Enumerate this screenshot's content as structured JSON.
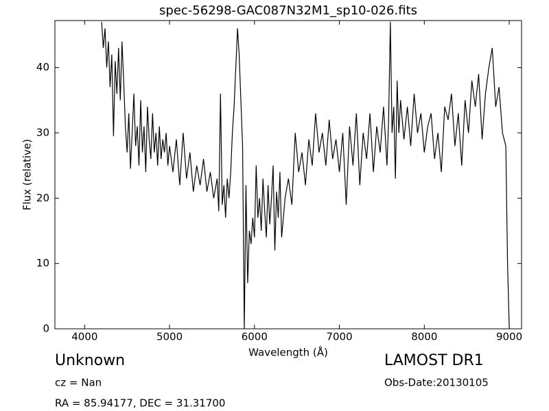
{
  "chart_data": {
    "type": "line",
    "title": "spec-56298-GAC087N32M1_sp10-026.fits",
    "x_label": "Wavelength (Å)",
    "y_label": "Flux (relative)",
    "annotations": [
      "Unknown",
      "cz = Nan",
      "RA = 85.94177, DEC = 31.31700",
      "LAMOST DR1",
      "Obs-Date:20130105"
    ],
    "color": "#000000",
    "x": [
      4200,
      4220,
      4240,
      4260,
      4280,
      4300,
      4320,
      4340,
      4360,
      4380,
      4400,
      4420,
      4440,
      4460,
      4480,
      4500,
      4520,
      4540,
      4560,
      4580,
      4600,
      4620,
      4640,
      4660,
      4680,
      4700,
      4720,
      4740,
      4760,
      4780,
      4800,
      4820,
      4840,
      4860,
      4880,
      4900,
      4920,
      4940,
      4960,
      4980,
      5000,
      5040,
      5080,
      5120,
      5160,
      5200,
      5240,
      5280,
      5320,
      5360,
      5400,
      5440,
      5480,
      5520,
      5560,
      5580,
      5600,
      5620,
      5640,
      5660,
      5680,
      5700,
      5720,
      5740,
      5760,
      5780,
      5800,
      5820,
      5840,
      5860,
      5880,
      5900,
      5920,
      5940,
      5960,
      5980,
      6000,
      6020,
      6040,
      6060,
      6080,
      6100,
      6120,
      6140,
      6160,
      6180,
      6200,
      6220,
      6240,
      6260,
      6280,
      6300,
      6320,
      6360,
      6400,
      6440,
      6480,
      6520,
      6560,
      6600,
      6640,
      6680,
      6720,
      6760,
      6800,
      6840,
      6880,
      6920,
      6960,
      7000,
      7040,
      7080,
      7120,
      7160,
      7200,
      7240,
      7280,
      7320,
      7360,
      7400,
      7440,
      7480,
      7520,
      7560,
      7580,
      7600,
      7620,
      7640,
      7660,
      7680,
      7700,
      7720,
      7760,
      7800,
      7840,
      7880,
      7920,
      7960,
      8000,
      8040,
      8080,
      8120,
      8160,
      8200,
      8240,
      8280,
      8320,
      8360,
      8400,
      8440,
      8480,
      8520,
      8560,
      8600,
      8640,
      8680,
      8720,
      8760,
      8800,
      8840,
      8880,
      8920,
      8960,
      8980,
      9000
    ],
    "values": [
      47,
      43,
      46,
      40,
      44,
      37,
      42,
      29.5,
      41,
      36,
      43,
      35,
      44,
      38,
      31,
      27,
      33,
      24.5,
      30,
      36,
      28,
      31,
      25,
      35,
      27,
      31,
      24,
      34,
      29,
      26,
      33,
      27,
      30,
      25,
      31,
      26,
      29,
      27,
      30,
      25,
      28,
      24,
      29,
      22,
      30,
      23,
      27,
      21,
      25,
      22,
      26,
      21,
      24,
      20,
      23,
      18,
      36,
      19,
      22,
      17,
      23,
      20,
      24,
      30,
      34,
      40,
      46,
      42,
      35,
      28,
      0,
      22,
      7,
      15,
      13,
      17,
      14,
      25,
      17,
      20,
      15,
      23,
      18,
      14,
      22,
      16,
      20,
      25,
      12,
      21,
      17,
      24,
      14,
      20,
      23,
      19,
      30,
      24,
      27,
      22,
      29,
      25,
      33,
      27,
      30,
      25,
      32,
      26,
      29,
      24,
      30,
      19,
      31,
      25,
      33,
      22,
      30,
      26,
      33,
      24,
      31,
      27,
      34,
      25,
      32,
      47,
      30,
      34,
      23,
      38,
      30,
      35,
      29,
      34,
      28,
      36,
      30,
      33,
      27,
      31,
      33,
      26,
      30,
      24,
      34,
      32,
      36,
      28,
      33,
      25,
      35,
      30,
      38,
      34,
      39,
      29,
      36,
      40,
      43,
      34,
      37,
      30,
      28,
      10,
      0
    ],
    "xlim": [
      3650,
      9145
    ],
    "ylim": [
      0,
      47.2
    ],
    "xticks": [
      4000,
      5000,
      6000,
      7000,
      8000,
      9000
    ],
    "yticks": [
      0,
      10,
      20,
      30,
      40
    ]
  }
}
